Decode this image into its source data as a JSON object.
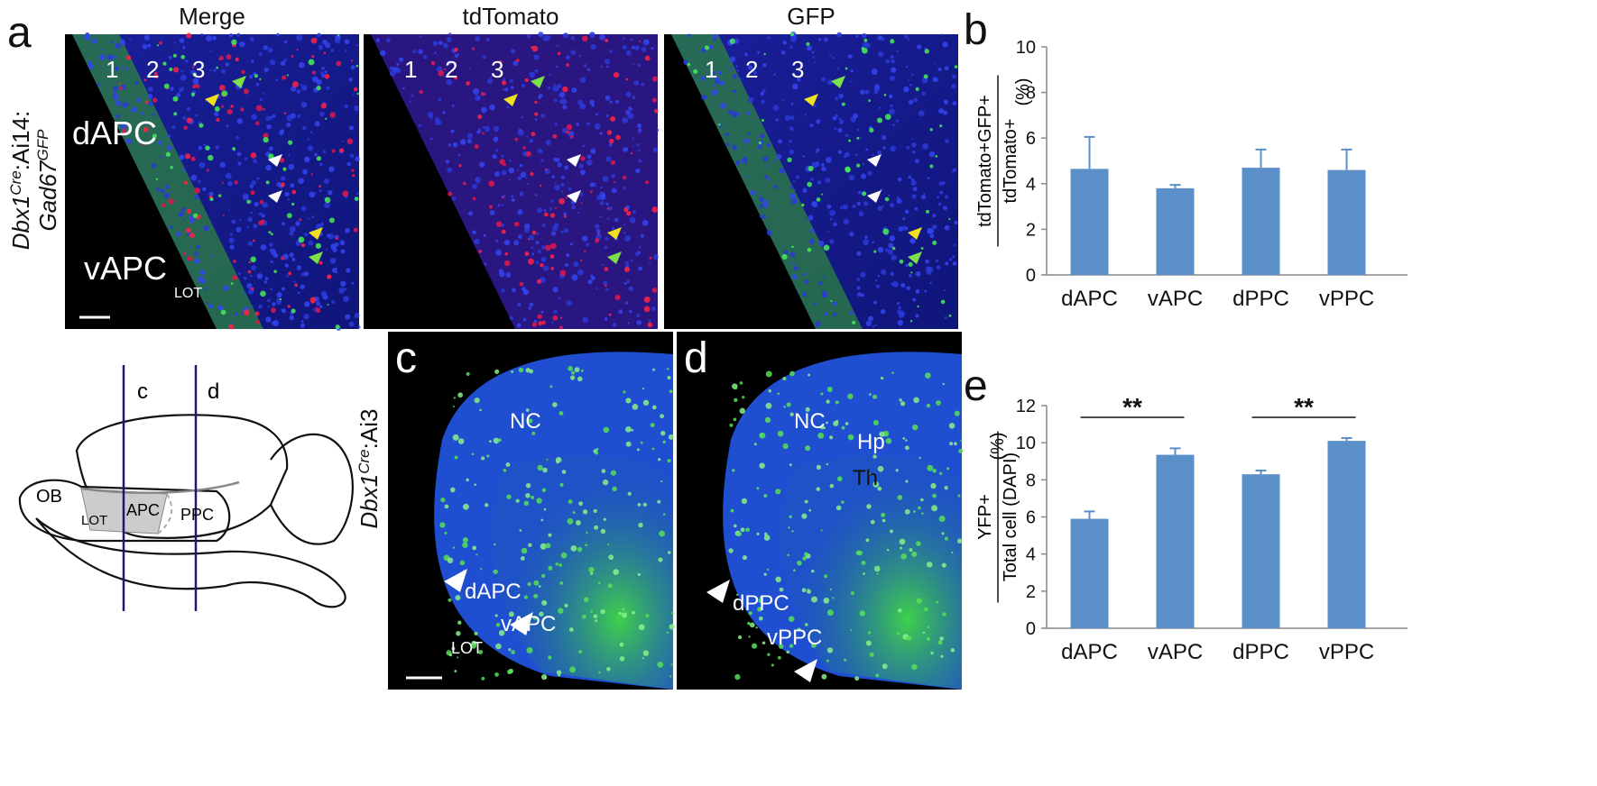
{
  "panel_a": {
    "label": "a",
    "titles": [
      "Merge",
      "tdTomato",
      "GFP"
    ],
    "layer_numbers": [
      "1",
      "2",
      "3"
    ],
    "regions": [
      "dAPC",
      "vAPC"
    ],
    "tract": "LOT",
    "genotype": [
      "Dbx1",
      "Cre",
      ":Ai14:",
      "Gad67",
      "GFP"
    ]
  },
  "schematic": {
    "section_labels": [
      "c",
      "d"
    ],
    "regions": [
      "OB",
      "LOT",
      "APC",
      "PPC"
    ]
  },
  "panel_c": {
    "label": "c",
    "genotype": [
      "Dbx1",
      "Cre",
      ":Ai3"
    ],
    "texts": [
      "NC",
      "dAPC",
      "vAPC",
      "LOT"
    ]
  },
  "panel_d": {
    "label": "d",
    "texts": [
      "NC",
      "Hp",
      "Th",
      "dPPC",
      "vPPC"
    ]
  },
  "chart_data": [
    {
      "type": "bar",
      "panel_label": "b",
      "y_label_numerator": "tdTomato+GFP+",
      "y_label_denominator": "tdTomato+",
      "y_label_unit": "(%)",
      "categories": [
        "dAPC",
        "vAPC",
        "dPPC",
        "vPPC"
      ],
      "values": [
        4.65,
        3.8,
        4.7,
        4.6
      ],
      "errors": [
        1.4,
        0.15,
        0.8,
        0.9
      ],
      "color": "#5b8fc9",
      "ylim": [
        0,
        10
      ],
      "yticks": [
        0,
        2,
        4,
        6,
        8,
        10
      ]
    },
    {
      "type": "bar",
      "panel_label": "e",
      "y_label_numerator": "YFP+",
      "y_label_denominator": "Total cell (DAPI)",
      "y_label_unit": "(%)",
      "categories": [
        "dAPC",
        "vAPC",
        "dPPC",
        "vPPC"
      ],
      "values": [
        5.9,
        9.35,
        8.3,
        10.1
      ],
      "errors": [
        0.4,
        0.35,
        0.2,
        0.15
      ],
      "color": "#5b8fc9",
      "ylim": [
        0,
        12
      ],
      "yticks": [
        0,
        2,
        4,
        6,
        8,
        10,
        12
      ],
      "annotations": [
        "**",
        "**"
      ]
    }
  ]
}
